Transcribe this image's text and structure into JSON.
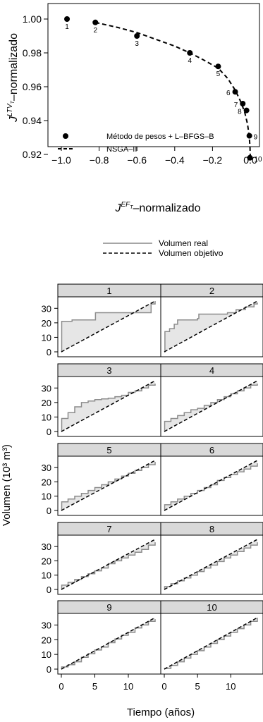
{
  "chart_data": [
    {
      "type": "scatter",
      "xlabel_base": "J",
      "xlabel_sup": "EF",
      "xlabel_subsup": "T",
      "xlabel_suffix": "–normalizado",
      "ylabel_base": "J",
      "ylabel_sup": "LTV",
      "ylabel_subsup": "T",
      "ylabel_suffix": "–normalizado",
      "xlim": [
        -1.05,
        0.05
      ],
      "ylim": [
        0.915,
        1.005
      ],
      "xticks": [
        "−1.0",
        "−0.8",
        "−0.6",
        "−0.4",
        "−0.2",
        "0.0"
      ],
      "xtick_values": [
        -1.0,
        -0.8,
        -0.6,
        -0.4,
        -0.2,
        0.0
      ],
      "yticks": [
        "1.00",
        "0.98",
        "0.96",
        "0.94",
        "0.92"
      ],
      "ytick_values": [
        1.0,
        0.98,
        0.96,
        0.94,
        0.92
      ],
      "legend": {
        "position": "bottom-left",
        "entries": [
          "Método de pesos + L–BFGS–B",
          "NSGA–II"
        ]
      },
      "points": [
        {
          "label": "1",
          "x": -0.97,
          "y": 1.0
        },
        {
          "label": "2",
          "x": -0.82,
          "y": 0.998
        },
        {
          "label": "3",
          "x": -0.6,
          "y": 0.99
        },
        {
          "label": "4",
          "x": -0.32,
          "y": 0.98
        },
        {
          "label": "5",
          "x": -0.17,
          "y": 0.972
        },
        {
          "label": "6",
          "x": -0.08,
          "y": 0.957
        },
        {
          "label": "7",
          "x": -0.04,
          "y": 0.95
        },
        {
          "label": "8",
          "x": -0.02,
          "y": 0.946
        },
        {
          "label": "9",
          "x": -0.005,
          "y": 0.931
        },
        {
          "label": "10",
          "x": -0.002,
          "y": 0.918
        }
      ],
      "front": {
        "x": [
          -0.82,
          -0.7,
          -0.6,
          -0.5,
          -0.4,
          -0.32,
          -0.25,
          -0.17,
          -0.12,
          -0.08,
          -0.05,
          -0.03,
          -0.015,
          -0.006,
          -0.002,
          0.0
        ],
        "y": [
          0.998,
          0.995,
          0.992,
          0.988,
          0.984,
          0.98,
          0.976,
          0.971,
          0.965,
          0.958,
          0.951,
          0.945,
          0.938,
          0.931,
          0.925,
          0.918
        ]
      }
    },
    {
      "type": "line",
      "legend": [
        "Volumen real",
        "Volumen objetivo"
      ],
      "xlabel": "Tiempo (años)",
      "ylabel": "Volumen (10³ m³)",
      "xlim": [
        0,
        14
      ],
      "ylim": [
        0,
        35
      ],
      "xticks": [
        "0",
        "5",
        "10"
      ],
      "xtick_values": [
        0,
        5,
        10
      ],
      "yticks": [
        "0",
        "10",
        "20",
        "30"
      ],
      "ytick_values": [
        0,
        10,
        20,
        30
      ],
      "target": {
        "x": [
          0,
          14
        ],
        "y": [
          0,
          35
        ]
      },
      "panels": [
        {
          "title": "1",
          "real": {
            "x": [
              0,
              0.05,
              1.5,
              1.6,
              5.0,
              5.1,
              9.6,
              9.7,
              13.2,
              13.4,
              14
            ],
            "y": [
              0,
              21,
              21,
              22,
              22,
              27,
              27,
              27,
              27,
              33,
              35
            ]
          }
        },
        {
          "title": "2",
          "real": {
            "x": [
              0,
              0.1,
              0.8,
              1.5,
              2.0,
              5.0,
              5.2,
              9.5,
              10.8,
              12.2,
              13.5,
              14
            ],
            "y": [
              0,
              14,
              16,
              19,
              22,
              23,
              26,
              27,
              29,
              31,
              33,
              34
            ]
          }
        },
        {
          "title": "3",
          "real": {
            "x": [
              0,
              0.05,
              1.0,
              2.0,
              3.0,
              4.0,
              5.0,
              6.0,
              7.0,
              8.0,
              9.0,
              10.0,
              11.0,
              12.0,
              13.0,
              14
            ],
            "y": [
              0,
              9,
              13,
              17,
              20,
              21,
              22,
              22.5,
              23,
              24,
              25,
              27,
              28,
              30,
              32,
              33
            ]
          }
        },
        {
          "title": "4",
          "real": {
            "x": [
              0,
              0.05,
              1.0,
              2.0,
              3.0,
              4.0,
              5.0,
              6.0,
              7.0,
              8.0,
              9.0,
              10.0,
              11.0,
              12.0,
              13.0,
              14
            ],
            "y": [
              0,
              7,
              9,
              11,
              13,
              15,
              16,
              18,
              20,
              22,
              24,
              26,
              28,
              30,
              32,
              33
            ]
          }
        },
        {
          "title": "5",
          "real": {
            "x": [
              0,
              0.05,
              1.0,
              2.0,
              3.0,
              4.0,
              5.0,
              6.0,
              7.0,
              8.0,
              9.0,
              10.0,
              11.0,
              12.0,
              13.0,
              14
            ],
            "y": [
              0,
              6,
              8,
              10,
              12,
              14,
              16,
              18,
              20,
              22,
              24,
              26,
              28,
              30,
              32,
              34
            ]
          }
        },
        {
          "title": "6",
          "real": {
            "x": [
              0,
              0.05,
              1.0,
              2.0,
              3.0,
              4.0,
              5.0,
              6.0,
              7.0,
              8.0,
              9.0,
              10.0,
              11.0,
              12.0,
              13.0,
              14
            ],
            "y": [
              0,
              4,
              6,
              8,
              10,
              12,
              14,
              16,
              18,
              21,
              23,
              25,
              27,
              29,
              31,
              33
            ]
          }
        },
        {
          "title": "7",
          "real": {
            "x": [
              0,
              0.05,
              1.0,
              2.0,
              3.0,
              4.0,
              5.0,
              6.0,
              7.0,
              8.0,
              9.0,
              10.0,
              11.0,
              12.0,
              13.0,
              14
            ],
            "y": [
              0,
              3,
              5,
              7,
              9,
              11,
              13,
              15,
              18,
              20,
              22,
              24,
              26,
              28,
              31,
              33
            ]
          }
        },
        {
          "title": "8",
          "real": {
            "x": [
              0,
              0.05,
              1.0,
              2.0,
              3.0,
              4.0,
              5.0,
              6.0,
              7.0,
              8.0,
              9.0,
              10.0,
              11.0,
              12.0,
              13.0,
              14
            ],
            "y": [
              0,
              2,
              4,
              6,
              8,
              10,
              12.5,
              15,
              17,
              19.5,
              22,
              24,
              26.5,
              29,
              31,
              33
            ]
          }
        },
        {
          "title": "9",
          "real": {
            "x": [
              0,
              0.05,
              1.0,
              2.0,
              3.0,
              4.0,
              5.0,
              6.0,
              7.0,
              8.0,
              9.0,
              10.0,
              11.0,
              12.0,
              13.0,
              14
            ],
            "y": [
              0,
              1.5,
              3,
              5,
              8,
              10.5,
              13,
              15,
              18,
              20.5,
              23,
              25,
              28,
              30,
              32.5,
              34
            ]
          }
        },
        {
          "title": "10",
          "real": {
            "x": [
              0,
              0.05,
              1.0,
              2.0,
              3.0,
              4.0,
              5.0,
              6.0,
              7.0,
              8.0,
              9.0,
              10.0,
              11.0,
              12.0,
              13.0,
              14
            ],
            "y": [
              0,
              0.5,
              2.5,
              5,
              7.5,
              10,
              12.5,
              15,
              17.5,
              20,
              22.5,
              25,
              27.5,
              30,
              32.5,
              35
            ]
          }
        }
      ]
    }
  ]
}
